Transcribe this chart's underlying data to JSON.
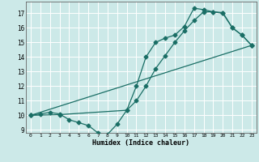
{
  "xlabel": "Humidex (Indice chaleur)",
  "bg_color": "#cce9e8",
  "grid_color": "#ffffff",
  "line_color": "#1a6e65",
  "xlim": [
    -0.5,
    23.5
  ],
  "ylim": [
    8.8,
    17.8
  ],
  "xticks": [
    0,
    1,
    2,
    3,
    4,
    5,
    6,
    7,
    8,
    9,
    10,
    11,
    12,
    13,
    14,
    15,
    16,
    17,
    18,
    19,
    20,
    21,
    22,
    23
  ],
  "yticks": [
    9,
    10,
    11,
    12,
    13,
    14,
    15,
    16,
    17
  ],
  "line1_x": [
    0,
    1,
    2,
    3,
    4,
    5,
    6,
    7,
    8,
    9,
    10,
    11,
    12,
    13,
    14,
    15,
    16,
    17,
    18,
    19,
    20,
    21,
    22,
    23
  ],
  "line1_y": [
    10.0,
    10.1,
    10.2,
    10.1,
    9.7,
    9.5,
    9.3,
    8.8,
    8.7,
    9.4,
    10.35,
    12.0,
    14.0,
    15.0,
    15.3,
    15.5,
    16.1,
    17.35,
    17.25,
    17.1,
    17.0,
    16.0,
    15.5,
    14.8
  ],
  "line2_x": [
    0,
    3,
    10,
    11,
    12,
    13,
    14,
    15,
    16,
    17,
    18,
    19,
    20,
    21,
    22,
    23
  ],
  "line2_y": [
    10.0,
    10.05,
    10.35,
    11.0,
    12.0,
    13.2,
    14.1,
    15.0,
    15.8,
    16.5,
    17.1,
    17.1,
    17.05,
    16.0,
    15.5,
    14.8
  ],
  "line3_x": [
    0,
    23
  ],
  "line3_y": [
    10.0,
    14.8
  ]
}
